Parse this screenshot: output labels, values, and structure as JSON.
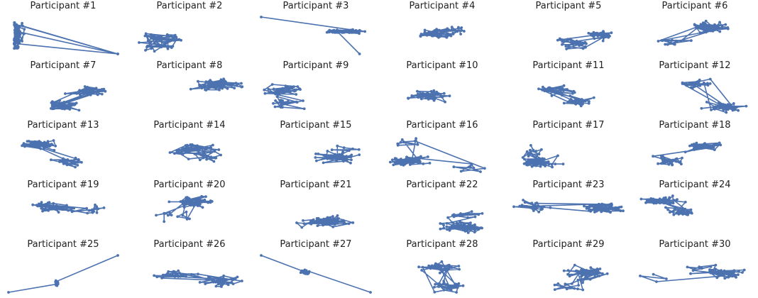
{
  "chart_data": {
    "type": "line",
    "layout": "grid of small multiples, 5 rows by 6 columns",
    "axes_visible": false,
    "grid": false,
    "legend": "none",
    "series_color": "#4c72b0",
    "panels": [
      {
        "title": "Participant #1"
      },
      {
        "title": "Participant #2"
      },
      {
        "title": "Participant #3"
      },
      {
        "title": "Participant #4"
      },
      {
        "title": "Participant #5"
      },
      {
        "title": "Participant #6"
      },
      {
        "title": "Participant #7"
      },
      {
        "title": "Participant #8"
      },
      {
        "title": "Participant #9"
      },
      {
        "title": "Participant #10"
      },
      {
        "title": "Participant #11"
      },
      {
        "title": "Participant #12"
      },
      {
        "title": "Participant #13"
      },
      {
        "title": "Participant #14"
      },
      {
        "title": "Participant #15"
      },
      {
        "title": "Participant #16"
      },
      {
        "title": "Participant #17"
      },
      {
        "title": "Participant #18"
      },
      {
        "title": "Participant #19"
      },
      {
        "title": "Participant #20"
      },
      {
        "title": "Participant #21"
      },
      {
        "title": "Participant #22"
      },
      {
        "title": "Participant #23"
      },
      {
        "title": "Participant #24"
      },
      {
        "title": "Participant #25"
      },
      {
        "title": "Participant #26"
      },
      {
        "title": "Participant #27"
      },
      {
        "title": "Participant #28"
      },
      {
        "title": "Participant #29"
      },
      {
        "title": "Participant #30"
      }
    ]
  }
}
